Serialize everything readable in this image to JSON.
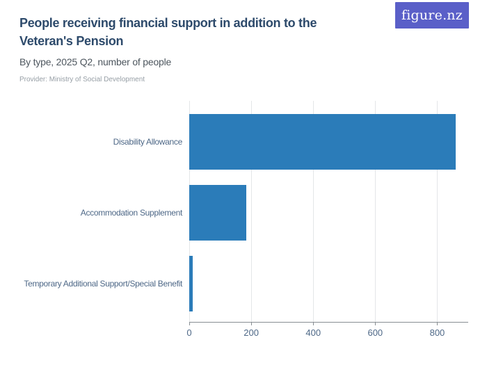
{
  "header": {
    "title": "People receiving financial support in addition to the Veteran's Pension",
    "subtitle": "By type, 2025 Q2, number of people",
    "provider": "Provider: Ministry of Social Development",
    "logo_text": "figure.nz"
  },
  "colors": {
    "title": "#2d4a6b",
    "subtitle": "#4d565e",
    "provider": "#969ea5",
    "logo_bg": "#5a5fc8",
    "bar": "#2b7cb9",
    "axis_label": "#4e6887",
    "gridline": "#e4e6e8",
    "axis_line": "#878d92"
  },
  "chart_data": {
    "type": "bar",
    "orientation": "horizontal",
    "title": "People receiving financial support in addition to the Veteran's Pension",
    "subtitle": "By type, 2025 Q2, number of people",
    "source": "Provider: Ministry of Social Development",
    "categories": [
      "Disability Allowance",
      "Accommodation Supplement",
      "Temporary Additional Support/Special Benefit"
    ],
    "values": [
      860,
      185,
      12
    ],
    "xlabel": "",
    "ylabel": "",
    "xlim": [
      0,
      900
    ],
    "xticks": [
      0,
      200,
      400,
      600,
      800
    ],
    "grid": true,
    "legend": false
  }
}
